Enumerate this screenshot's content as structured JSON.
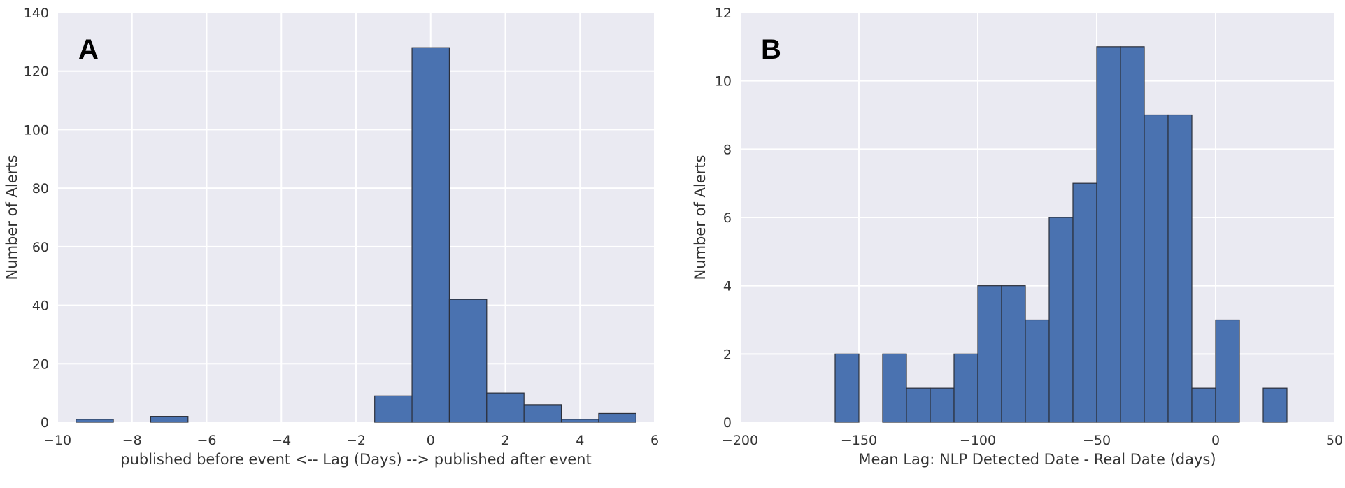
{
  "chart_data": [
    {
      "type": "bar",
      "panel_label": "A",
      "xlabel": "published before event <-- Lag (Days) --> published after event",
      "ylabel": "Number of Alerts",
      "xlim": [
        -10,
        6
      ],
      "ylim": [
        0,
        140
      ],
      "xticks": [
        -10,
        -8,
        -6,
        -4,
        -2,
        0,
        2,
        4,
        6
      ],
      "yticks": [
        0,
        20,
        40,
        60,
        80,
        100,
        120,
        140
      ],
      "xtick_labels": [
        "−10",
        "−8",
        "−6",
        "−4",
        "−2",
        "0",
        "2",
        "4",
        "6"
      ],
      "ytick_labels": [
        "0",
        "20",
        "40",
        "60",
        "80",
        "100",
        "120",
        "140"
      ],
      "bins": [
        {
          "x0": -9.5,
          "x1": -8.5,
          "value": 1
        },
        {
          "x0": -7.5,
          "x1": -6.5,
          "value": 2
        },
        {
          "x0": -1.5,
          "x1": -0.5,
          "value": 9
        },
        {
          "x0": -0.5,
          "x1": 0.5,
          "value": 128
        },
        {
          "x0": 0.5,
          "x1": 1.5,
          "value": 42
        },
        {
          "x0": 1.5,
          "x1": 2.5,
          "value": 10
        },
        {
          "x0": 2.5,
          "x1": 3.5,
          "value": 6
        },
        {
          "x0": 3.5,
          "x1": 4.5,
          "value": 1
        },
        {
          "x0": 4.5,
          "x1": 5.5,
          "value": 3
        }
      ],
      "grid": true
    },
    {
      "type": "bar",
      "panel_label": "B",
      "xlabel": "Mean Lag: NLP Detected Date - Real Date (days)",
      "ylabel": "Number of Alerts",
      "xlim": [
        -200,
        50
      ],
      "ylim": [
        0,
        12
      ],
      "xticks": [
        -200,
        -150,
        -100,
        -50,
        0,
        50
      ],
      "yticks": [
        0,
        2,
        4,
        6,
        8,
        10,
        12
      ],
      "xtick_labels": [
        "−200",
        "−150",
        "−100",
        "−50",
        "0",
        "50"
      ],
      "ytick_labels": [
        "0",
        "2",
        "4",
        "6",
        "8",
        "10",
        "12"
      ],
      "bins": [
        {
          "x0": -160,
          "x1": -150,
          "value": 2
        },
        {
          "x0": -140,
          "x1": -130,
          "value": 2
        },
        {
          "x0": -130,
          "x1": -120,
          "value": 1
        },
        {
          "x0": -120,
          "x1": -110,
          "value": 1
        },
        {
          "x0": -110,
          "x1": -100,
          "value": 2
        },
        {
          "x0": -100,
          "x1": -90,
          "value": 4
        },
        {
          "x0": -90,
          "x1": -80,
          "value": 4
        },
        {
          "x0": -80,
          "x1": -70,
          "value": 3
        },
        {
          "x0": -70,
          "x1": -60,
          "value": 6
        },
        {
          "x0": -60,
          "x1": -50,
          "value": 7
        },
        {
          "x0": -50,
          "x1": -40,
          "value": 11
        },
        {
          "x0": -40,
          "x1": -30,
          "value": 11
        },
        {
          "x0": -30,
          "x1": -20,
          "value": 9
        },
        {
          "x0": -20,
          "x1": -10,
          "value": 9
        },
        {
          "x0": -10,
          "x1": 0,
          "value": 1
        },
        {
          "x0": 0,
          "x1": 10,
          "value": 3
        },
        {
          "x0": 20,
          "x1": 30,
          "value": 1
        }
      ],
      "grid": true
    }
  ]
}
